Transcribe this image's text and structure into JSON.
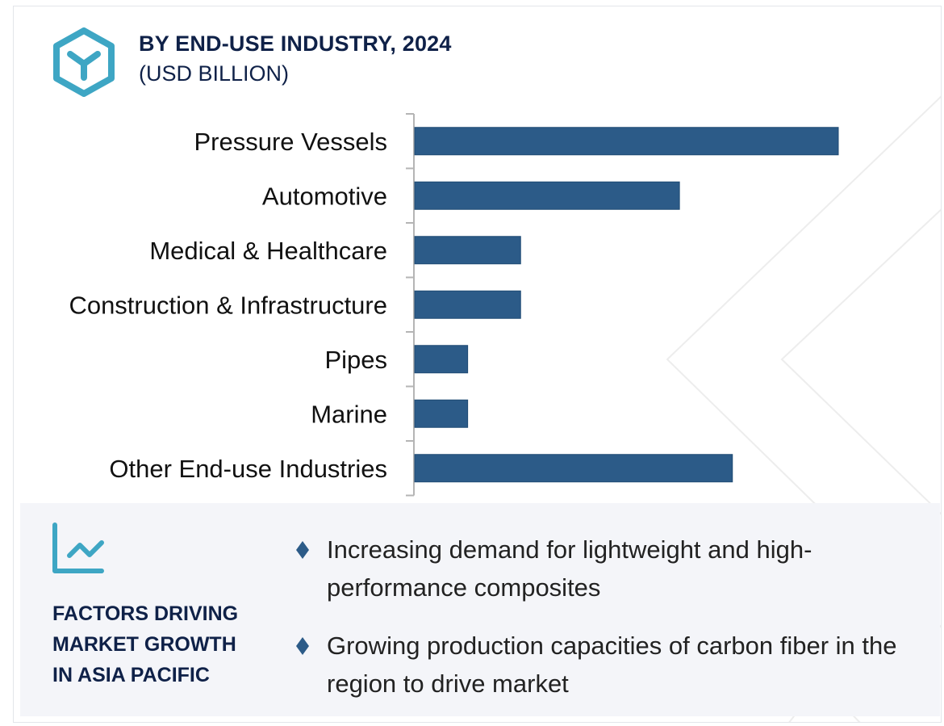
{
  "header": {
    "title": "BY END-USE INDUSTRY, 2024",
    "subtitle": "(USD BILLION)",
    "logo_icon": "hexagon-y-logo-icon"
  },
  "colors": {
    "bar": "#2c5b88",
    "bar_edge": "#1f4a73",
    "title": "#0f2148",
    "accent": "#3ea6c4",
    "axis": "#b5b5b5",
    "panel_bg": "#f4f5f9"
  },
  "chart_data": {
    "type": "bar",
    "orientation": "horizontal",
    "title": "BY END-USE INDUSTRY, 2024",
    "subtitle": "(USD BILLION)",
    "xlabel": "",
    "ylabel": "",
    "categories": [
      "Pressure Vessels",
      "Automotive",
      "Medical & Healthcare",
      "Construction & Infrastructure",
      "Pipes",
      "Marine",
      "Other End-use Industries"
    ],
    "values": [
      100,
      62.5,
      25,
      25,
      12.5,
      12.5,
      75
    ],
    "value_units": "relative (no axis values shown; largest bar = 100)",
    "xlim": [
      0,
      100
    ],
    "grid": false,
    "legend": "none",
    "data_labels": false
  },
  "factors": {
    "icon": "trend-line-chart-icon",
    "title_lines": [
      "FACTORS DRIVING",
      "MARKET GROWTH",
      "IN ASIA PACIFIC"
    ],
    "bullets": [
      "Increasing demand for lightweight and high-performance composites",
      "Growing production capacities of carbon fiber in the region to drive market"
    ]
  }
}
